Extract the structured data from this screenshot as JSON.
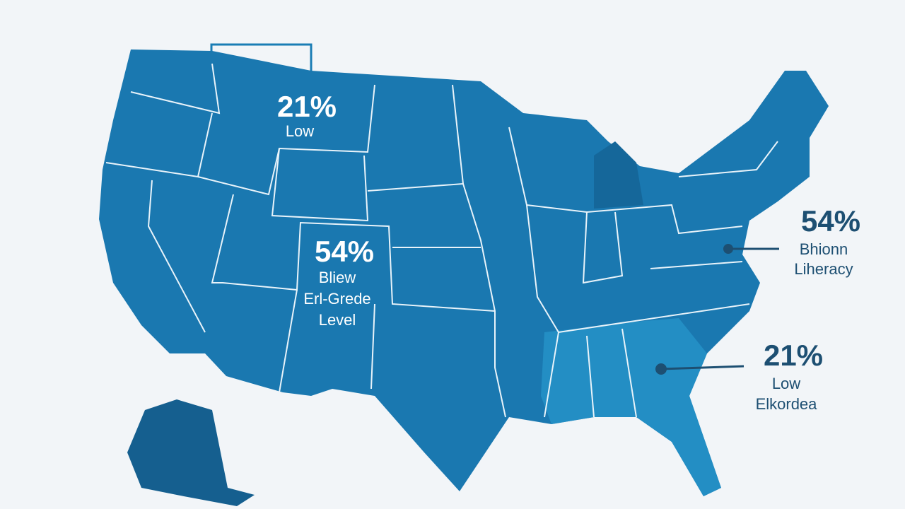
{
  "annotations": [
    {
      "value": "21%",
      "lines": [
        "Low"
      ]
    },
    {
      "value": "54%",
      "lines": [
        "Bliew",
        "Erl-Grede",
        "Level"
      ]
    },
    {
      "value": "54%",
      "lines": [
        "Bhionn",
        "Liheracy"
      ]
    },
    {
      "value": "21%",
      "lines": [
        "Low",
        "Elkordea"
      ]
    }
  ]
}
